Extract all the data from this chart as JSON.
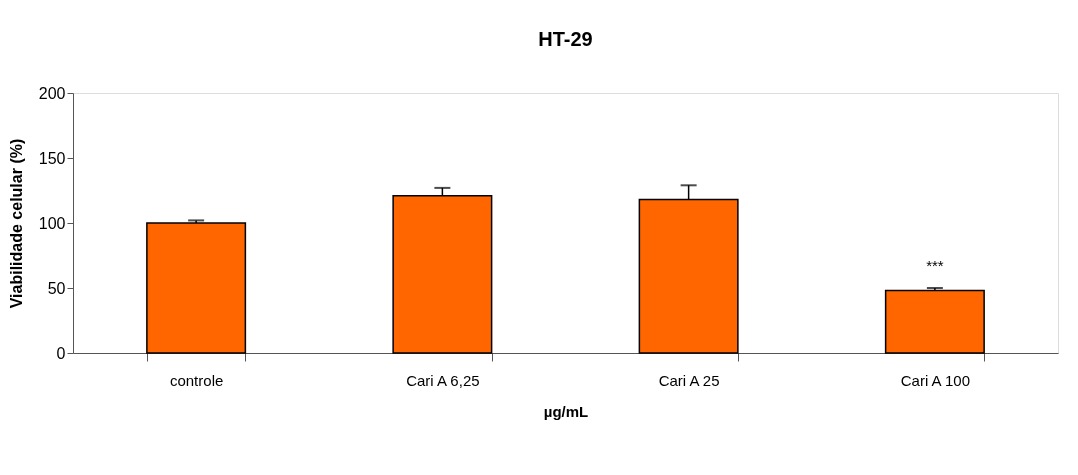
{
  "chart_data": {
    "type": "bar",
    "title": "HT-29",
    "xlabel": "µg/mL",
    "ylabel": "Viabilidade celular (%)",
    "categories": [
      "controle",
      "Cari A 6,25",
      "Cari A  25",
      "Cari A 100"
    ],
    "values": [
      100,
      121,
      118,
      48
    ],
    "errors": [
      2,
      6,
      11,
      2
    ],
    "color": "#ff6600",
    "ylim": [
      0,
      200
    ],
    "yticks": [
      0,
      50,
      100,
      150,
      200
    ],
    "grid": false,
    "annotations": [
      "***"
    ]
  }
}
